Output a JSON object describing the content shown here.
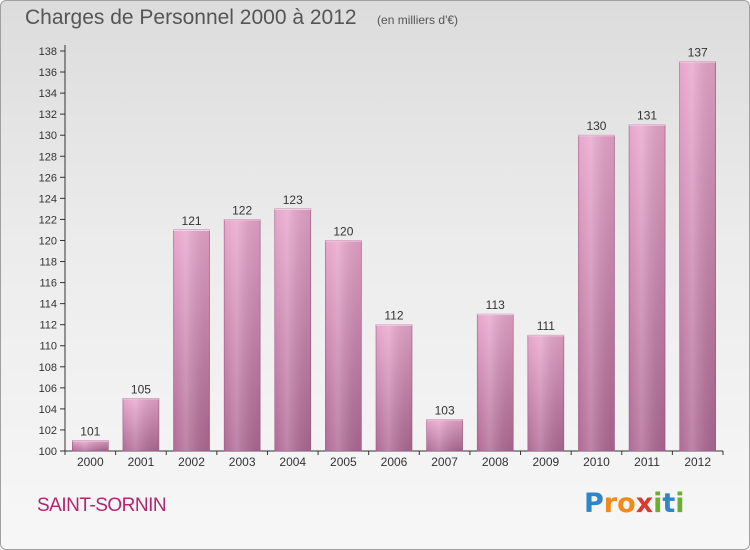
{
  "title": "Charges de Personnel 2000 à 2012",
  "unit_note": "(en milliers d'€)",
  "commune": "SAINT-SORNIN",
  "logo": {
    "text": "Proxiti",
    "letters": [
      {
        "ch": "P",
        "color": "#2e86c8"
      },
      {
        "ch": "r",
        "color": "#f08a1c"
      },
      {
        "ch": "o",
        "color": "#f08a1c"
      },
      {
        "ch": "x",
        "color": "#d93a2b"
      },
      {
        "ch": "i",
        "color": "#6aaf2f"
      },
      {
        "ch": "t",
        "color": "#2e86c8"
      },
      {
        "ch": "i",
        "color": "#6aaf2f"
      }
    ]
  },
  "colors": {
    "bar_top": "#e8a6cc",
    "bar_bottom": "#b06a95",
    "bar_side": "#9d5a83",
    "axis": "#333333",
    "grid": "#c8c8c8",
    "text": "#333333",
    "title": "#555555",
    "commune": "#b2266f"
  },
  "chart_data": {
    "type": "bar",
    "title": "Charges de Personnel 2000 à 2012",
    "subtitle": "(en milliers d'€)",
    "xlabel": "",
    "ylabel": "",
    "categories": [
      "2000",
      "2001",
      "2002",
      "2003",
      "2004",
      "2005",
      "2006",
      "2007",
      "2008",
      "2009",
      "2010",
      "2011",
      "2012"
    ],
    "values": [
      101,
      105,
      121,
      122,
      123,
      120,
      112,
      103,
      113,
      111,
      130,
      131,
      137
    ],
    "value_labels": [
      "101",
      "105",
      "121",
      "122",
      "123",
      "120",
      "112",
      "103",
      "113",
      "111",
      "130",
      "131",
      "137"
    ],
    "ylim": [
      100,
      138
    ],
    "yticks": [
      100,
      102,
      104,
      106,
      108,
      110,
      112,
      114,
      116,
      118,
      120,
      122,
      124,
      126,
      128,
      130,
      132,
      134,
      136,
      138
    ],
    "grid": false,
    "legend": "none"
  }
}
